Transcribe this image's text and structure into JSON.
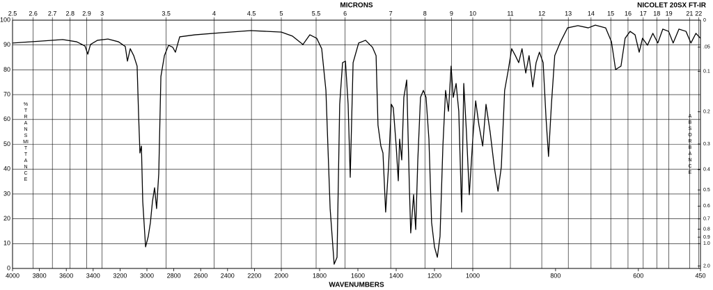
{
  "chart_data": {
    "type": "line",
    "title": "NICOLET 20SX FT-IR",
    "xlabel": "WAVENUMBERS",
    "x2label": "MICRONS",
    "ylabel": "%TRANSMITTANCE",
    "y2label": "ABSORBANCE",
    "color": "#000000",
    "grid": true,
    "xlim": [
      4000,
      450
    ],
    "xticks": [
      4000,
      3800,
      3600,
      3400,
      3200,
      3000,
      2800,
      2600,
      2400,
      2200,
      2000,
      1800,
      1600,
      1400,
      1200,
      1000,
      800,
      600,
      450
    ],
    "x2ticks": [
      2.5,
      2.6,
      2.7,
      2.8,
      2.9,
      3,
      3.5,
      4,
      4.5,
      5,
      5.5,
      6,
      7,
      8,
      9,
      10,
      11,
      12,
      13,
      14,
      15,
      16,
      17,
      18,
      19,
      21,
      22
    ],
    "ylim": [
      0,
      100
    ],
    "yticks": [
      0,
      10,
      20,
      30,
      40,
      50,
      60,
      70,
      80,
      90,
      100
    ],
    "y2ticks": [
      0,
      {
        "value": 0.05,
        "label": ".05"
      },
      0.1,
      0.2,
      0.3,
      0.4,
      0.5,
      0.6,
      0.7,
      0.8,
      0.9,
      {
        "value": 1,
        "label": "1.0"
      },
      {
        "value": 2,
        "label": "2.0"
      }
    ],
    "x": [
      4000,
      3782,
      3627,
      3523,
      3461,
      3440,
      3420,
      3368,
      3290,
      3212,
      3161,
      3145,
      3124,
      3098,
      3073,
      3062,
      3052,
      3041,
      3031,
      3010,
      2990,
      2974,
      2959,
      2943,
      2928,
      2912,
      2896,
      2870,
      2839,
      2808,
      2788,
      2756,
      2643,
      2435,
      2228,
      2000,
      1942,
      1887,
      1851,
      1815,
      1789,
      1767,
      1745,
      1724,
      1709,
      1695,
      1680,
      1665,
      1651,
      1640,
      1625,
      1596,
      1560,
      1524,
      1505,
      1495,
      1480,
      1469,
      1455,
      1440,
      1425,
      1415,
      1400,
      1389,
      1382,
      1371,
      1360,
      1345,
      1331,
      1324,
      1309,
      1298,
      1287,
      1273,
      1258,
      1244,
      1229,
      1215,
      1200,
      1185,
      1171,
      1156,
      1142,
      1127,
      1113,
      1102,
      1087,
      1073,
      1058,
      1047,
      1033,
      1018,
      1000,
      993,
      985,
      976,
      968,
      958,
      948,
      939,
      931,
      923,
      914,
      906,
      897,
      889,
      881,
      872,
      864,
      855,
      847,
      839,
      830,
      823,
      817,
      810,
      802,
      788,
      771,
      746,
      721,
      704,
      679,
      665,
      655,
      642,
      632,
      620,
      608,
      598,
      590,
      578,
      565,
      553,
      541,
      527,
      516,
      502,
      485,
      473,
      461,
      450
    ],
    "values": [
      90.8,
      91.6,
      92.2,
      91.3,
      89.6,
      86.3,
      90.2,
      91.9,
      92.4,
      91.3,
      89.4,
      83.5,
      88.5,
      85.7,
      81.5,
      61.9,
      46.5,
      49.3,
      26.9,
      8.7,
      12.9,
      18.5,
      26.9,
      32.5,
      24.1,
      38.1,
      77.3,
      85.7,
      89.9,
      89.1,
      87.1,
      93.3,
      94.1,
      95.0,
      95.8,
      95.2,
      93.6,
      90.2,
      94.1,
      92.7,
      88.5,
      71.7,
      24.1,
      1.7,
      4.5,
      66.1,
      82.9,
      83.5,
      66.1,
      36.7,
      82.9,
      90.8,
      91.9,
      89.1,
      85.7,
      57.7,
      49.3,
      46.5,
      22.7,
      40.9,
      66.1,
      64.7,
      49.3,
      35.3,
      52.1,
      43.7,
      68.9,
      75.9,
      32.5,
      14.3,
      29.7,
      15.7,
      43.7,
      68.9,
      71.7,
      68.9,
      52.1,
      18.5,
      8.7,
      4.5,
      12.9,
      49.3,
      71.7,
      63.3,
      81.5,
      68.9,
      74.5,
      63.3,
      22.7,
      74.5,
      54.9,
      29.7,
      52.1,
      67.5,
      57.7,
      49.3,
      66.1,
      54.9,
      40.9,
      31.1,
      40.9,
      71.7,
      80.1,
      88.5,
      85.7,
      82.9,
      88.5,
      78.7,
      85.7,
      73.1,
      82.9,
      87.1,
      82.9,
      60.5,
      45.1,
      66.1,
      85.7,
      91.3,
      96.9,
      97.8,
      96.9,
      98.0,
      96.9,
      91.3,
      80.1,
      81.5,
      92.7,
      95.5,
      94.1,
      87.1,
      92.7,
      89.9,
      94.7,
      90.8,
      96.4,
      95.5,
      90.8,
      96.4,
      95.5,
      90.8,
      94.7,
      92.7
    ]
  }
}
